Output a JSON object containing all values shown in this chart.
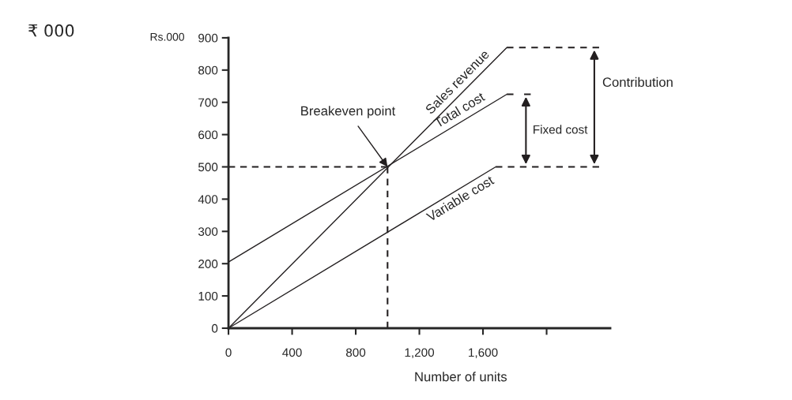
{
  "chart_data": {
    "type": "line",
    "xlabel": "Number of units",
    "ylabel": "Rs.000",
    "annotations": [
      "₹ 000",
      {
        "text": "Breakeven point",
        "x": 1000,
        "y": 500
      },
      "Fixed cost",
      "Contribution"
    ],
    "xlim": [
      0,
      2400
    ],
    "xticks": [
      0,
      400,
      {
        "value": 800,
        "label": "800"
      },
      {
        "value": 1200,
        "label": "1,200"
      },
      {
        "value": 1600,
        "label": "1,600"
      },
      {
        "value": 2000,
        "label": null
      }
    ],
    "ylim": [
      0,
      900
    ],
    "yticks": [
      0,
      100,
      200,
      300,
      400,
      500,
      600,
      700,
      800,
      900
    ],
    "grid": false,
    "legend": false,
    "marker": "none",
    "series": [
      {
        "name": "Sales revenue",
        "color": "#231f20",
        "x": [
          0,
          1750
        ],
        "values": [
          0,
          870
        ],
        "line_style": "solid"
      },
      {
        "name": "Total cost",
        "color": "#231f20",
        "x": [
          0,
          1750
        ],
        "values": [
          205,
          725
        ],
        "line_style": "solid"
      },
      {
        "name": "Variable cost",
        "color": "#231f20",
        "x": [
          0,
          1680
        ],
        "values": [
          0,
          500
        ],
        "line_style": "solid"
      },
      {
        "color": "#231f20",
        "x": [
          0,
          1000
        ],
        "values": [
          500,
          500
        ],
        "line_style": "dashed"
      },
      {
        "color": "#231f20",
        "x": [
          1000,
          1000
        ],
        "values": [
          500,
          0
        ],
        "line_style": "dashed"
      },
      {
        "color": "#231f20",
        "x": [
          1750,
          2330
        ],
        "values": [
          870,
          870
        ],
        "line_style": "dashed"
      },
      {
        "color": "#231f20",
        "x": [
          1750,
          1900
        ],
        "values": [
          725,
          725
        ],
        "line_style": "dashed"
      },
      {
        "color": "#231f20",
        "x": [
          1680,
          2330
        ],
        "values": [
          500,
          500
        ],
        "line_style": "dashed"
      }
    ]
  }
}
